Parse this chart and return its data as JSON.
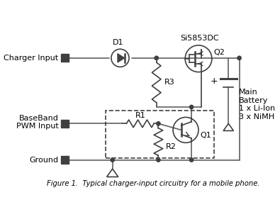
{
  "title": "Figure 1.  Typical charger-input circuitry for a mobile phone.",
  "background_color": "#ffffff",
  "line_color": "#606060",
  "text_color": "#000000",
  "labels": {
    "charger_input": "Charger Input",
    "baseband": "BaseBand\nPWM Input",
    "ground": "Ground",
    "d1": "D1",
    "q2_label": "Si5853DC",
    "q2": "Q2",
    "q1": "Q1",
    "r1": "R1",
    "r2": "R2",
    "r3": "R3",
    "battery_plus": "+",
    "battery_text": "Main\nBattery\n1 x Li-Ion\n3 x NiMH"
  }
}
